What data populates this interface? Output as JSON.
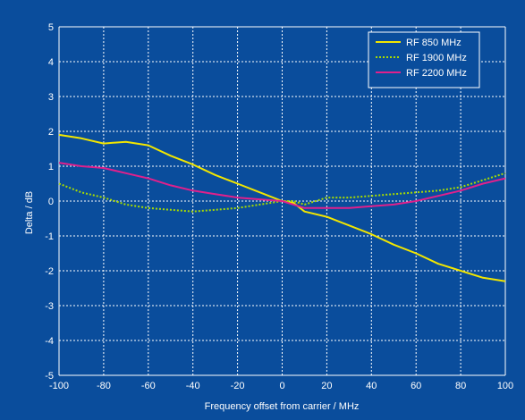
{
  "chart_data": {
    "type": "line",
    "title": "",
    "xlabel": "Frequency offset from carrier / MHz",
    "ylabel": "Delta / dB",
    "xlim": [
      -100,
      100
    ],
    "ylim": [
      -5,
      5
    ],
    "xticks": [
      -100,
      -80,
      -60,
      -40,
      -20,
      0,
      20,
      40,
      60,
      80,
      100
    ],
    "yticks": [
      -5,
      -4,
      -3,
      -2,
      -1,
      0,
      1,
      2,
      3,
      4,
      5
    ],
    "grid": true,
    "legend_position": "top-right",
    "series": [
      {
        "name": "RF 850 MHz",
        "color": "#f2e600",
        "style": "solid",
        "x": [
          -100,
          -90,
          -80,
          -70,
          -60,
          -50,
          -40,
          -30,
          -20,
          -10,
          0,
          5,
          10,
          20,
          30,
          40,
          50,
          60,
          70,
          80,
          90,
          100
        ],
        "y": [
          1.9,
          1.8,
          1.65,
          1.7,
          1.6,
          1.3,
          1.05,
          0.75,
          0.5,
          0.25,
          0.0,
          -0.05,
          -0.3,
          -0.45,
          -0.7,
          -0.95,
          -1.25,
          -1.5,
          -1.8,
          -2.0,
          -2.2,
          -2.3
        ]
      },
      {
        "name": "RF 1900 MHz",
        "color": "#a8dc00",
        "style": "dotted",
        "x": [
          -100,
          -90,
          -80,
          -70,
          -60,
          -50,
          -40,
          -30,
          -20,
          -10,
          0,
          5,
          10,
          20,
          30,
          40,
          50,
          60,
          70,
          80,
          90,
          100
        ],
        "y": [
          0.5,
          0.25,
          0.1,
          -0.1,
          -0.2,
          -0.25,
          -0.3,
          -0.25,
          -0.2,
          -0.1,
          0.0,
          0.0,
          -0.1,
          0.1,
          0.1,
          0.15,
          0.2,
          0.25,
          0.3,
          0.4,
          0.6,
          0.8
        ]
      },
      {
        "name": "RF 2200 MHz",
        "color": "#e0208c",
        "style": "solid",
        "x": [
          -100,
          -90,
          -80,
          -70,
          -60,
          -50,
          -40,
          -30,
          -20,
          -10,
          0,
          5,
          10,
          20,
          30,
          40,
          50,
          60,
          70,
          80,
          90,
          100
        ],
        "y": [
          1.1,
          1.0,
          0.95,
          0.8,
          0.65,
          0.45,
          0.3,
          0.2,
          0.1,
          0.05,
          0.0,
          -0.1,
          -0.2,
          -0.2,
          -0.2,
          -0.15,
          -0.1,
          0.0,
          0.15,
          0.3,
          0.5,
          0.65
        ]
      }
    ]
  },
  "colors": {
    "background": "#0a4d9c",
    "grid": "#ffffff",
    "text": "#ffffff"
  }
}
